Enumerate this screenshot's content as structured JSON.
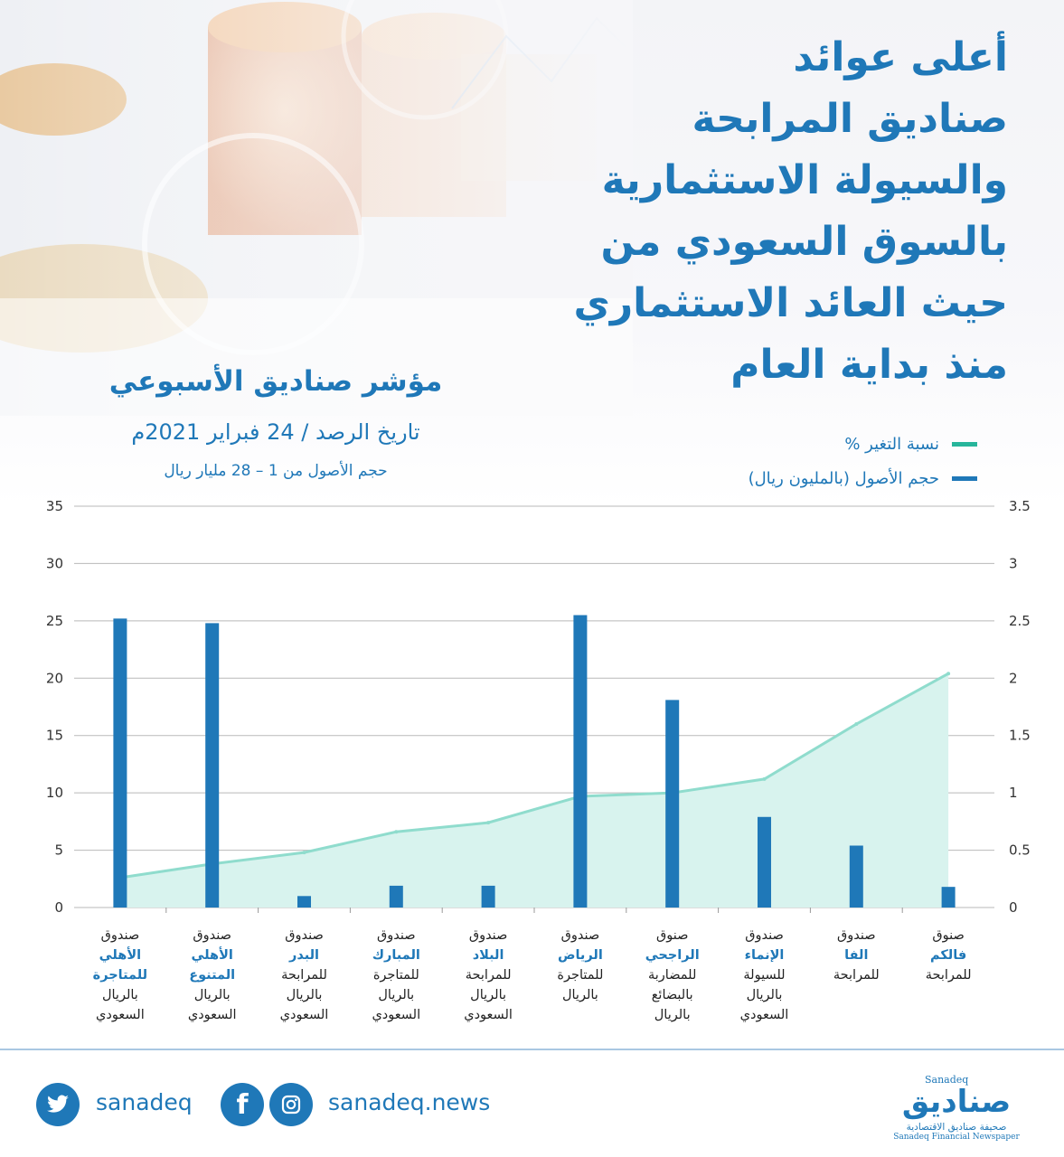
{
  "title": {
    "lines": [
      "أعلى عوائد",
      "صناديق المرابحة",
      "والسيولة الاستثمارية",
      "بالسوق السعودي من",
      "حيث العائد الاستثماري",
      "منذ بداية العام"
    ]
  },
  "subhead": {
    "line1": "مؤشر صناديق الأسبوعي",
    "line2": "تاريخ الرصد / 24 فبراير 2021م",
    "line3": "حجم الأصول من 1 – 28 مليار ريال"
  },
  "legend": [
    {
      "label": "نسبة التغير %",
      "color": "#27b59b"
    },
    {
      "label": "حجم الأصول (بالمليون ريال)",
      "color": "#1f78b8"
    }
  ],
  "chart_data": {
    "type": "bar",
    "categories": [
      [
        "صندوق",
        "الأهلي",
        "للمتاجرة",
        "بالريال",
        "السعودي"
      ],
      [
        "صندوق",
        "الأهلي",
        "المتنوع",
        "بالريال",
        "السعودي"
      ],
      [
        "صندوق",
        "البدر",
        "للمرابحة",
        "بالريال",
        "السعودي"
      ],
      [
        "صندوق",
        "المبارك",
        "للمتاجرة",
        "بالريال",
        "السعودي"
      ],
      [
        "صندوق",
        "البلاد",
        "للمرابحة",
        "بالريال",
        "السعودي"
      ],
      [
        "صندوق",
        "الرياض",
        "للمتاجرة",
        "بالريال"
      ],
      [
        "صنوق",
        "الراجحي",
        "للمضاربة",
        "بالبضائع",
        "بالريال"
      ],
      [
        "صندوق",
        "الإنماء",
        "للسيولة",
        "بالريال",
        "السعودي"
      ],
      [
        "صندوق",
        "الفا",
        "للمرابحة"
      ],
      [
        "صنوق",
        "فالكم",
        "للمرابحة"
      ]
    ],
    "category_bold_index": 1,
    "category_bold_extra": [
      0,
      1
    ],
    "series": [
      {
        "name": "حجم الأصول (بالمليون ريال)",
        "type": "bar",
        "axis": "left",
        "color": "#1f78b8",
        "values": [
          25.2,
          24.8,
          1,
          1.9,
          1.9,
          25.5,
          18.1,
          7.9,
          5.4,
          1.8
        ]
      },
      {
        "name": "نسبة التغير %",
        "type": "area",
        "axis": "right",
        "color": "#8fdccd",
        "fill": "#d8f3ee",
        "values": [
          0.26,
          0.38,
          0.48,
          0.66,
          0.74,
          0.97,
          1.0,
          1.12,
          1.6,
          2.04
        ]
      }
    ],
    "left_axis": {
      "ticks": [
        "0",
        "5",
        "10",
        "15",
        "20",
        "25",
        "30",
        "35"
      ],
      "ylim": [
        0,
        35
      ]
    },
    "right_axis": {
      "ticks": [
        "0",
        "0.5",
        "1",
        "1.5",
        "2",
        "2.5",
        "3",
        "3.5"
      ],
      "ylim": [
        0,
        3.5
      ]
    },
    "grid": true
  },
  "footer": {
    "twitter_handle": "sanadeq",
    "web": "sanadeq.news",
    "logo_main": "صناديق",
    "logo_en_top": "Sanadeq",
    "logo_ar_sub": "صحيفة صناديق الاقتصادية",
    "logo_en_sub": "Sanadeq Financial Newspaper",
    "twitter_icon": "twitter-icon",
    "facebook_icon": "facebook-icon",
    "instagram_icon": "instagram-icon"
  }
}
